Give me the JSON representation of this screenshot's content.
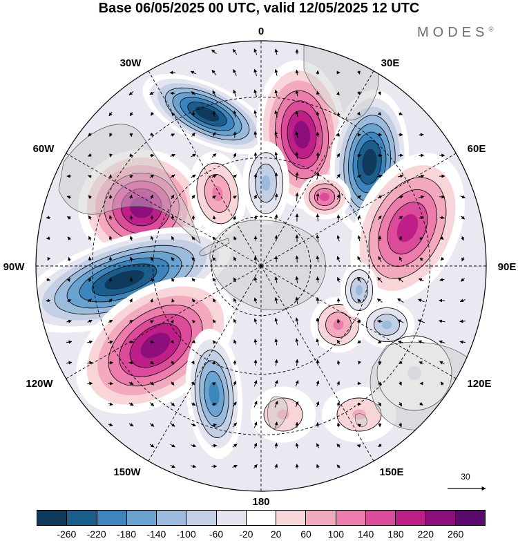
{
  "title": "Base 06/05/2025 00 UTC, valid 12/05/2025 12 UTC",
  "brand": {
    "name": "MODES",
    "mark": "®"
  },
  "map": {
    "projection": "south-polar-stereographic",
    "longitude_labels": {
      "top": "0",
      "top_left": "30W",
      "top_right": "30E",
      "upper_left": "60W",
      "upper_right": "60E",
      "left": "90W",
      "right": "90E",
      "lower_left": "120W",
      "lower_right": "120E",
      "bottom_left": "150W",
      "bottom_right": "150E",
      "bottom": "180"
    },
    "vector_reference": {
      "value": "30",
      "icon": "arrow-right-icon"
    }
  },
  "colorbar": {
    "colors": [
      "#0f3a5c",
      "#1b5e8c",
      "#3d86bd",
      "#6aa3cf",
      "#9bbbdc",
      "#c3cfe4",
      "#e4e4ef",
      "#ffffff",
      "#f8d5d8",
      "#f3aabf",
      "#ec7cac",
      "#dc4b9a",
      "#bd1e87",
      "#8d0f7c",
      "#5b0a6e"
    ],
    "ticks": [
      "-260",
      "-220",
      "-180",
      "-140",
      "-100",
      "-60",
      "-20",
      "20",
      "60",
      "100",
      "140",
      "180",
      "220",
      "260"
    ]
  }
}
